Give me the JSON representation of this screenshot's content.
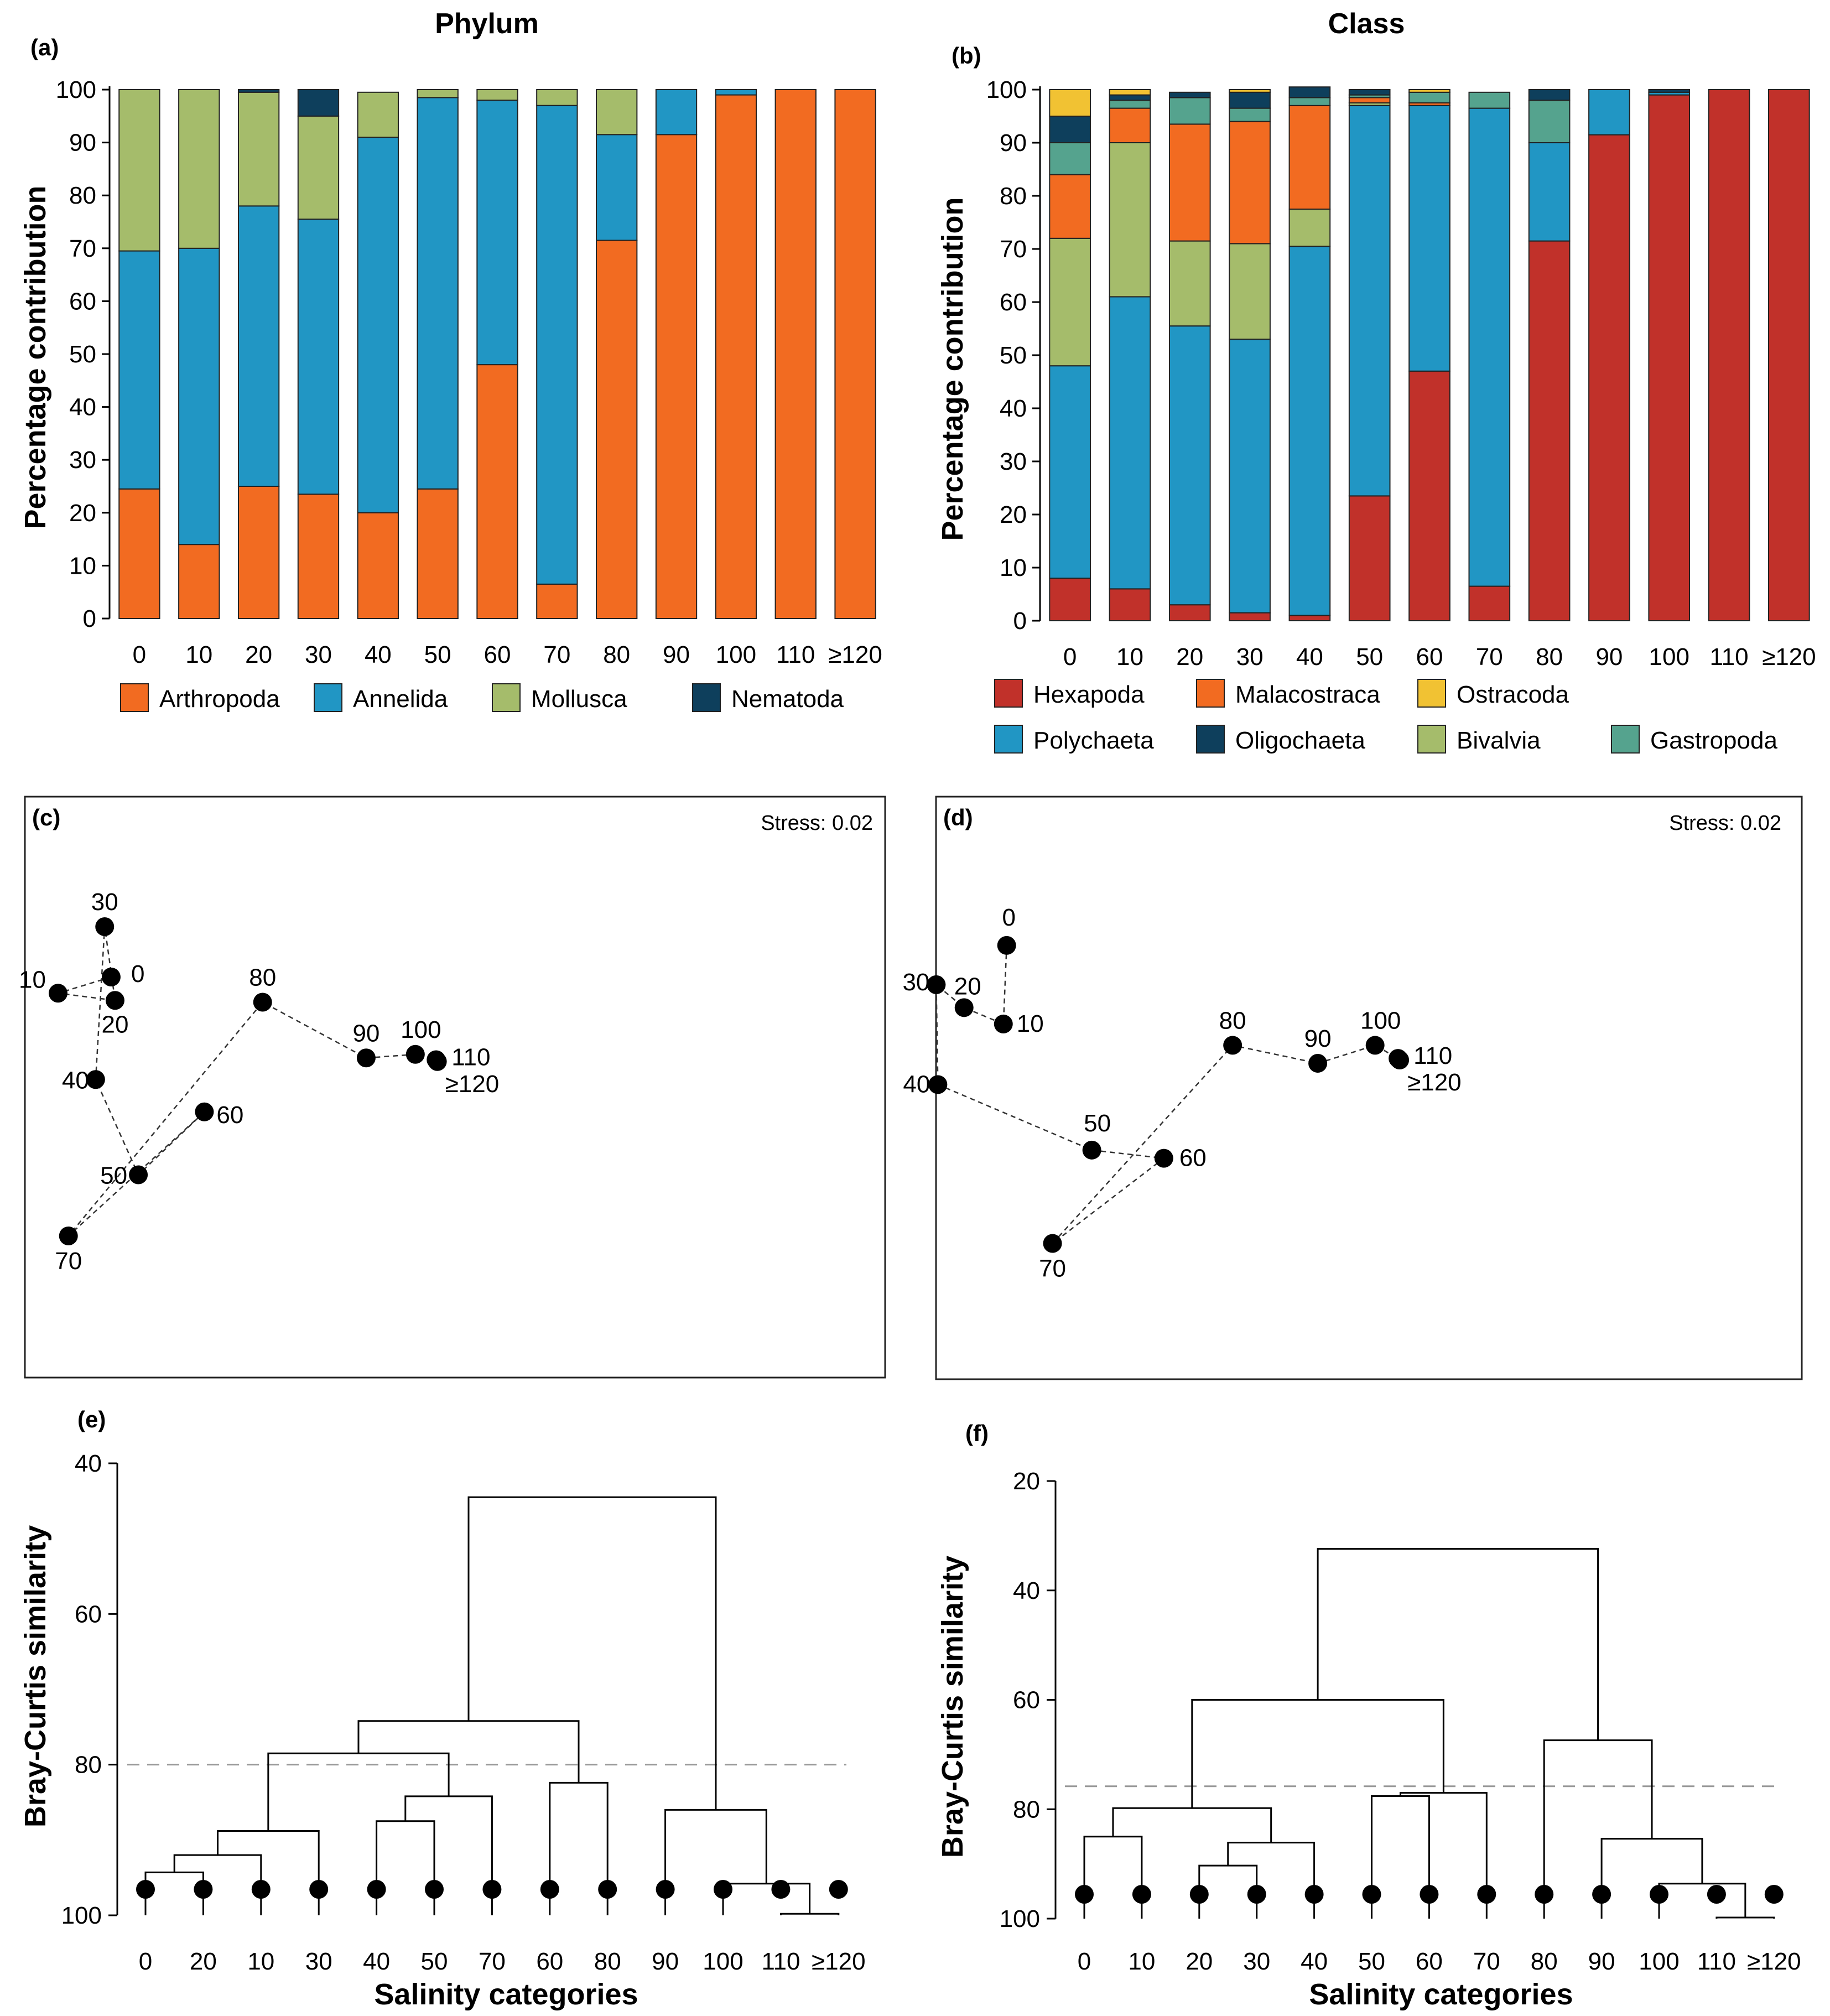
{
  "chart_data": [
    {
      "id": "a",
      "type": "bar",
      "stacked": true,
      "panel_label": "(a)",
      "title": "Phylum",
      "ylabel": "Percentage contribution",
      "xlabel": "",
      "ylim": [
        0,
        100
      ],
      "yticks": [
        "0",
        "10",
        "20",
        "30",
        "40",
        "50",
        "60",
        "70",
        "80",
        "90",
        "100"
      ],
      "categories": [
        "0",
        "10",
        "20",
        "30",
        "40",
        "50",
        "60",
        "70",
        "80",
        "90",
        "100",
        "110",
        "≥120"
      ],
      "series": [
        {
          "name": "Arthropoda",
          "color": "#F26B21",
          "values": [
            24.5,
            14,
            25,
            23.5,
            20,
            24.5,
            48,
            6.5,
            71.5,
            91.5,
            99,
            100,
            100
          ]
        },
        {
          "name": "Annelida",
          "color": "#2196C4",
          "values": [
            45,
            56,
            53,
            52,
            71,
            74,
            50,
            90.5,
            20,
            8.5,
            1,
            0,
            0
          ]
        },
        {
          "name": "Mollusca",
          "color": "#A5BC6B",
          "values": [
            30.5,
            30,
            21.5,
            19.5,
            8.5,
            1.5,
            2,
            3,
            8.5,
            0,
            0,
            0,
            0
          ]
        },
        {
          "name": "Nematoda",
          "color": "#0E3F5C",
          "values": [
            0,
            0,
            0.5,
            5,
            0,
            0,
            0,
            0,
            0,
            0,
            0,
            0,
            0
          ]
        }
      ]
    },
    {
      "id": "b",
      "type": "bar",
      "stacked": true,
      "panel_label": "(b)",
      "title": "Class",
      "ylabel": "Percentage contribution",
      "xlabel": "",
      "ylim": [
        0,
        100
      ],
      "yticks": [
        "0",
        "10",
        "20",
        "30",
        "40",
        "50",
        "60",
        "70",
        "80",
        "90",
        "100"
      ],
      "categories": [
        "0",
        "10",
        "20",
        "30",
        "40",
        "50",
        "60",
        "70",
        "80",
        "90",
        "100",
        "110",
        "≥120"
      ],
      "series": [
        {
          "name": "Hexapoda",
          "color": "#C1312A",
          "values": [
            8,
            6,
            3,
            1.5,
            1,
            23.5,
            47,
            6.5,
            71.5,
            91.5,
            99,
            100,
            100
          ]
        },
        {
          "name": "Polychaeta",
          "color": "#2196C4",
          "values": [
            40,
            55,
            52.5,
            51.5,
            69.5,
            73.5,
            50,
            90,
            18.5,
            8.5,
            0.5,
            0,
            0
          ]
        },
        {
          "name": "Bivalvia",
          "color": "#A5BC6B",
          "values": [
            24,
            29,
            16,
            18,
            7,
            0.5,
            0,
            0,
            0,
            0,
            0,
            0,
            0
          ]
        },
        {
          "name": "Malacostraca",
          "color": "#F26B21",
          "values": [
            12,
            6.5,
            22,
            23,
            19.5,
            1,
            0.5,
            0,
            0,
            0,
            0,
            0,
            0
          ]
        },
        {
          "name": "Gastropoda",
          "color": "#55A38E",
          "values": [
            6,
            1.5,
            5,
            2.5,
            1.5,
            0.5,
            2,
            3,
            8,
            0,
            0,
            0,
            0
          ]
        },
        {
          "name": "Oligochaeta",
          "color": "#0E3F5C",
          "values": [
            5,
            1,
            1,
            3,
            2,
            1,
            0,
            0,
            2,
            0,
            0.5,
            0,
            0
          ]
        },
        {
          "name": "Ostracoda",
          "color": "#F1C233",
          "values": [
            5,
            1,
            0,
            0.5,
            0,
            0,
            0.5,
            0,
            0,
            0,
            0,
            0,
            0
          ]
        }
      ]
    },
    {
      "id": "c",
      "type": "scatter",
      "panel_label": "(c)",
      "subtype": "nMDS ordination (trajectory)",
      "stress": "Stress: 0.02",
      "points": [
        {
          "label": "0",
          "x": 0.91,
          "y": 0.52
        },
        {
          "label": "10",
          "x": 0.5,
          "y": 0.43
        },
        {
          "label": "20",
          "x": 0.94,
          "y": 0.39
        },
        {
          "label": "30",
          "x": 0.86,
          "y": 0.8
        },
        {
          "label": "40",
          "x": 0.79,
          "y": -0.05
        },
        {
          "label": "50",
          "x": 1.12,
          "y": -0.58
        },
        {
          "label": "60",
          "x": 1.63,
          "y": -0.23
        },
        {
          "label": "70",
          "x": 0.58,
          "y": -0.92
        },
        {
          "label": "80",
          "x": 2.08,
          "y": 0.38
        },
        {
          "label": "90",
          "x": 2.88,
          "y": 0.07
        },
        {
          "label": "100",
          "x": 3.26,
          "y": 0.09
        },
        {
          "label": "110",
          "x": 3.42,
          "y": 0.06
        },
        {
          "label": "≥120",
          "x": 3.43,
          "y": 0.05
        }
      ],
      "path": [
        "0",
        "10",
        "20",
        "30",
        "40",
        "50",
        "60",
        "70",
        "80",
        "90",
        "100",
        "110",
        "≥120"
      ]
    },
    {
      "id": "d",
      "type": "scatter",
      "panel_label": "(d)",
      "subtype": "nMDS ordination (trajectory)",
      "stress": "Stress: 0.02",
      "points": [
        {
          "label": "0",
          "x": 1.08,
          "y": 0.96
        },
        {
          "label": "10",
          "x": 1.06,
          "y": 0.48
        },
        {
          "label": "20",
          "x": 0.82,
          "y": 0.58
        },
        {
          "label": "30",
          "x": 0.65,
          "y": 0.72
        },
        {
          "label": "40",
          "x": 0.66,
          "y": 0.11
        },
        {
          "label": "50",
          "x": 1.6,
          "y": -0.29
        },
        {
          "label": "60",
          "x": 2.04,
          "y": -0.34
        },
        {
          "label": "70",
          "x": 1.36,
          "y": -0.86
        },
        {
          "label": "80",
          "x": 2.46,
          "y": 0.35
        },
        {
          "label": "90",
          "x": 2.98,
          "y": 0.24
        },
        {
          "label": "100",
          "x": 3.33,
          "y": 0.35
        },
        {
          "label": "110",
          "x": 3.47,
          "y": 0.27
        },
        {
          "label": "≥120",
          "x": 3.48,
          "y": 0.26
        }
      ],
      "path": [
        "0",
        "10",
        "20",
        "30",
        "40",
        "50",
        "60",
        "70",
        "80",
        "90",
        "100",
        "110",
        "≥120"
      ]
    },
    {
      "id": "e",
      "type": "dendrogram",
      "panel_label": "(e)",
      "ylabel": "Bray-Curtis similarity",
      "xlabel": "Salinity categories",
      "ylim": [
        40,
        100
      ],
      "yticks": [
        "40",
        "60",
        "80",
        "100"
      ],
      "cut_level": 80,
      "leaves": [
        "0",
        "20",
        "10",
        "30",
        "40",
        "50",
        "70",
        "60",
        "80",
        "90",
        "100",
        "110",
        "≥120"
      ],
      "merges": [
        {
          "a": "L0",
          "b": "L1",
          "sim": 94.3
        },
        {
          "a": "M0",
          "b": "L2",
          "sim": 92
        },
        {
          "a": "M1",
          "b": "L3",
          "sim": 88.8
        },
        {
          "a": "L4",
          "b": "L5",
          "sim": 87.5
        },
        {
          "a": "M3",
          "b": "L6",
          "sim": 84.2
        },
        {
          "a": "M2",
          "b": "M4",
          "sim": 78.5
        },
        {
          "a": "L7",
          "b": "L8",
          "sim": 82.4
        },
        {
          "a": "M5",
          "b": "M6",
          "sim": 74.2
        },
        {
          "a": "L11",
          "b": "L12",
          "sim": 99.8
        },
        {
          "a": "L10",
          "b": "M8",
          "sim": 95.8
        },
        {
          "a": "L9",
          "b": "M9",
          "sim": 86
        },
        {
          "a": "M7",
          "b": "M10",
          "sim": 44.5
        }
      ]
    },
    {
      "id": "f",
      "type": "dendrogram",
      "panel_label": "(f)",
      "ylabel": "Bray-Curtis similarity",
      "xlabel": "Salinity categories",
      "ylim": [
        20,
        100
      ],
      "yticks": [
        "20",
        "40",
        "60",
        "80",
        "100"
      ],
      "cut_level": 75.8,
      "leaves": [
        "0",
        "10",
        "20",
        "30",
        "40",
        "50",
        "60",
        "70",
        "80",
        "90",
        "100",
        "110",
        "≥120"
      ],
      "merges": [
        {
          "a": "L0",
          "b": "L1",
          "sim": 85
        },
        {
          "a": "L2",
          "b": "L3",
          "sim": 90.3
        },
        {
          "a": "M1",
          "b": "L4",
          "sim": 86.1
        },
        {
          "a": "M0",
          "b": "M2",
          "sim": 79.8
        },
        {
          "a": "L5",
          "b": "L6",
          "sim": 77.6
        },
        {
          "a": "M4",
          "b": "L7",
          "sim": 77
        },
        {
          "a": "M3",
          "b": "M5",
          "sim": 60
        },
        {
          "a": "L11",
          "b": "L12",
          "sim": 99.8
        },
        {
          "a": "L10",
          "b": "M7",
          "sim": 93.6
        },
        {
          "a": "L9",
          "b": "M8",
          "sim": 85.4
        },
        {
          "a": "L8",
          "b": "M9",
          "sim": 67.4
        },
        {
          "a": "M6",
          "b": "M10",
          "sim": 32.4
        }
      ]
    }
  ]
}
